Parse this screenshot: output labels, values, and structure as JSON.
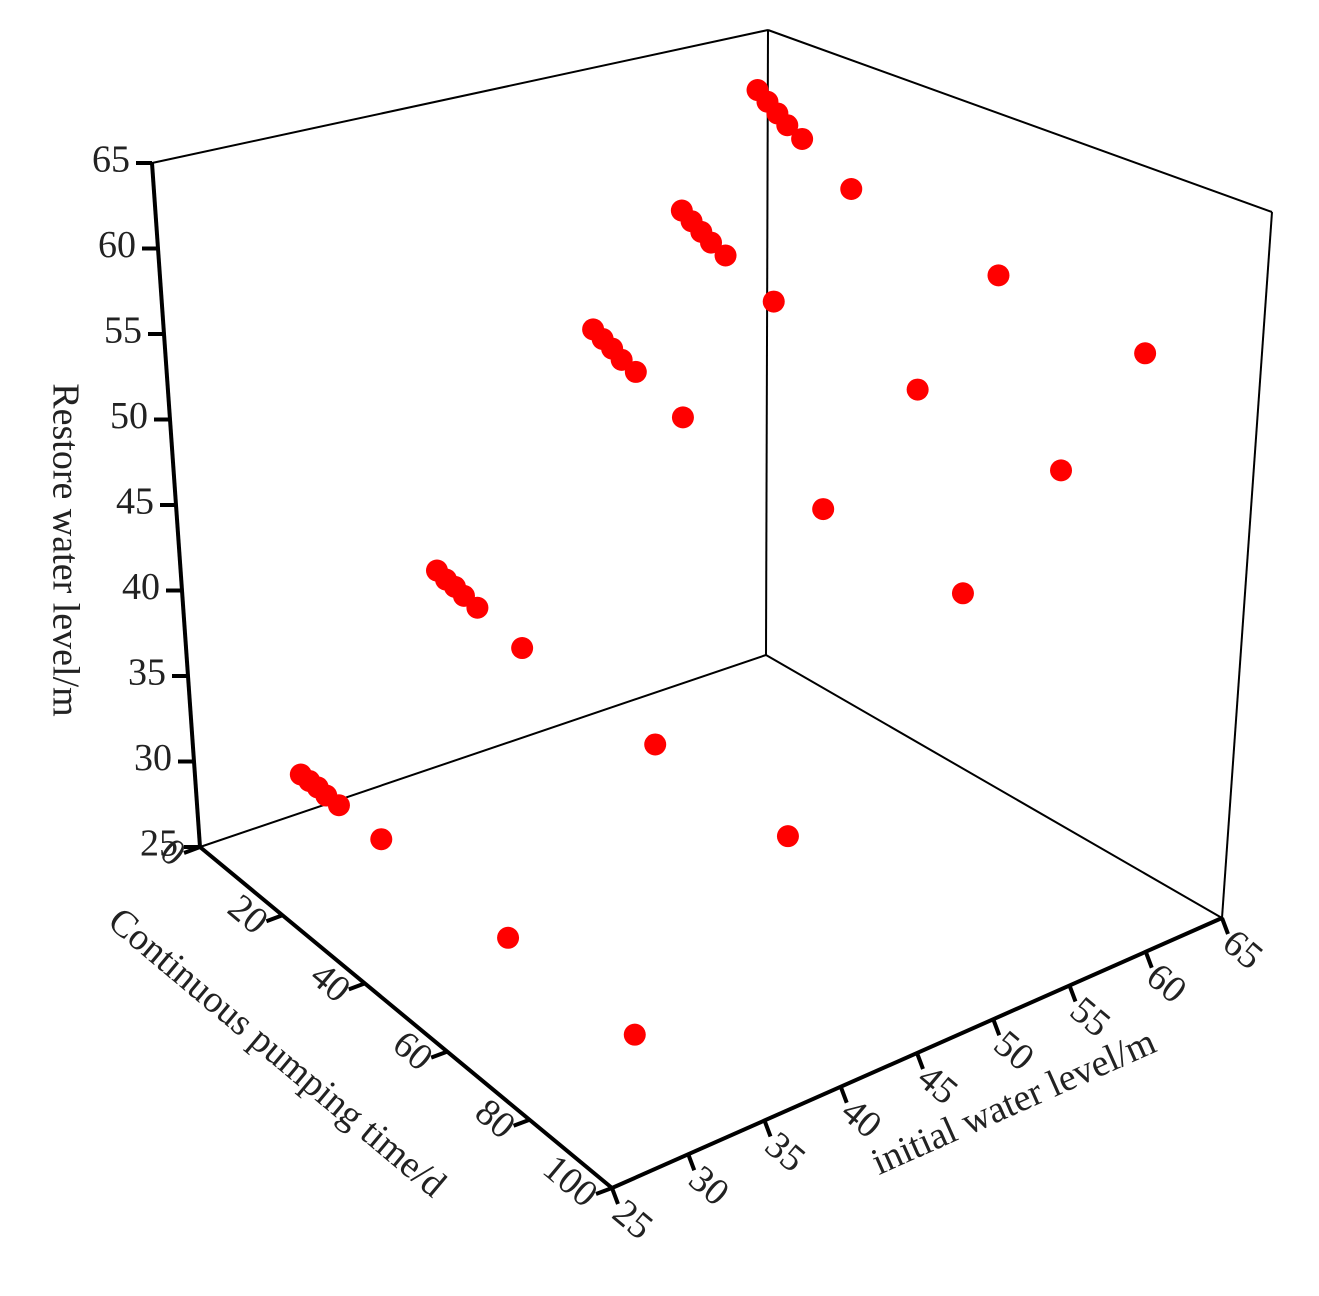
{
  "chart_data": {
    "type": "scatter3d",
    "x_label": "Continuous pumping time/d",
    "y_label": "initial water level/m",
    "z_label": "Restore water level/m",
    "xlim": [
      0,
      100
    ],
    "xticks": [
      0,
      20,
      40,
      60,
      80,
      100
    ],
    "ylim": [
      25,
      65
    ],
    "yticks": [
      25,
      30,
      35,
      40,
      45,
      50,
      55,
      60,
      65
    ],
    "zlim": [
      25,
      65
    ],
    "zticks": [
      25,
      30,
      35,
      40,
      45,
      50,
      55,
      60,
      65
    ],
    "series": [
      {
        "color": "#ff0000",
        "x": [
          1,
          3,
          5,
          7,
          10,
          20,
          50,
          80,
          1,
          3,
          5,
          7,
          10,
          20,
          50,
          80,
          1,
          3,
          5,
          7,
          10,
          20,
          50,
          80,
          1,
          3,
          5,
          7,
          10,
          20,
          50,
          80,
          1,
          3,
          5,
          7,
          10,
          20,
          50,
          80
        ],
        "y": [
          32,
          32,
          32,
          32,
          32,
          32,
          32,
          32,
          42,
          42,
          42,
          42,
          42,
          42,
          42,
          42,
          53,
          53,
          53,
          53,
          53,
          53,
          53,
          53,
          59,
          59,
          59,
          59,
          59,
          59,
          59,
          59,
          64,
          64,
          64,
          64,
          64,
          64,
          64,
          64
        ],
        "z": [
          27.5,
          27.5,
          27.5,
          27.4,
          27.4,
          27.3,
          27.2,
          27.2,
          37,
          36.8,
          36.7,
          36.5,
          36.3,
          35.6,
          35.0,
          34.7,
          49,
          48.7,
          48.4,
          48.0,
          47.7,
          46.4,
          45.3,
          44.7,
          55,
          54.6,
          54.2,
          53.8,
          53.4,
          51.9,
          50.6,
          49.8,
          61.5,
          61.0,
          60.5,
          60.0,
          59.5,
          57.6,
          56.0,
          55.0
        ]
      }
    ]
  }
}
